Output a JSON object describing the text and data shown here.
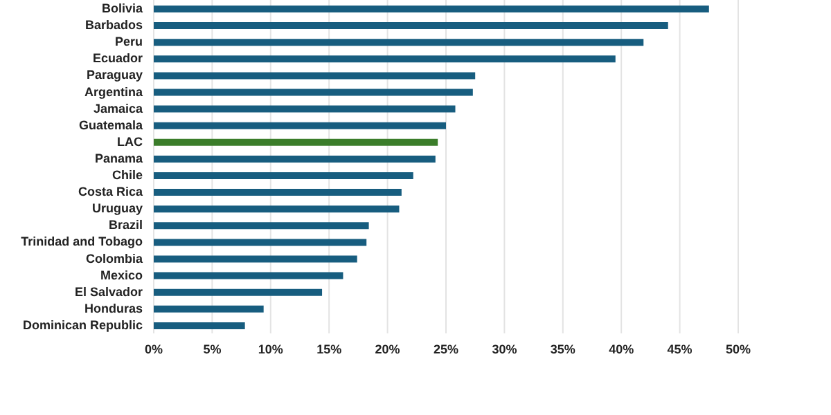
{
  "chart_data": {
    "type": "bar",
    "orientation": "horizontal",
    "categories": [
      "Bolivia",
      "Barbados",
      "Peru",
      "Ecuador",
      "Paraguay",
      "Argentina",
      "Jamaica",
      "Guatemala",
      "LAC",
      "Panama",
      "Chile",
      "Costa Rica",
      "Uruguay",
      "Brazil",
      "Trinidad and Tobago",
      "Colombia",
      "Mexico",
      "El Salvador",
      "Honduras",
      "Dominican Republic"
    ],
    "values": [
      47.5,
      44.0,
      41.9,
      39.5,
      27.5,
      27.3,
      25.8,
      25.0,
      24.3,
      24.1,
      22.2,
      21.2,
      21.0,
      18.4,
      18.2,
      17.4,
      16.2,
      14.4,
      9.4,
      7.8
    ],
    "colors": [
      "#175d7f",
      "#175d7f",
      "#175d7f",
      "#175d7f",
      "#175d7f",
      "#175d7f",
      "#175d7f",
      "#175d7f",
      "#3b7d2a",
      "#175d7f",
      "#175d7f",
      "#175d7f",
      "#175d7f",
      "#175d7f",
      "#175d7f",
      "#175d7f",
      "#175d7f",
      "#175d7f",
      "#175d7f",
      "#175d7f"
    ],
    "xlim": [
      0,
      50
    ],
    "xticks": [
      {
        "value": 0,
        "label": "0%"
      },
      {
        "value": 5,
        "label": "5%"
      },
      {
        "value": 10,
        "label": "10%"
      },
      {
        "value": 15,
        "label": "15%"
      },
      {
        "value": 20,
        "label": "20%"
      },
      {
        "value": 25,
        "label": "25%"
      },
      {
        "value": 30,
        "label": "30%"
      },
      {
        "value": 35,
        "label": "35%"
      },
      {
        "value": 40,
        "label": "40%"
      },
      {
        "value": 45,
        "label": "45%"
      },
      {
        "value": 50,
        "label": "50%"
      }
    ],
    "grid": "x"
  }
}
